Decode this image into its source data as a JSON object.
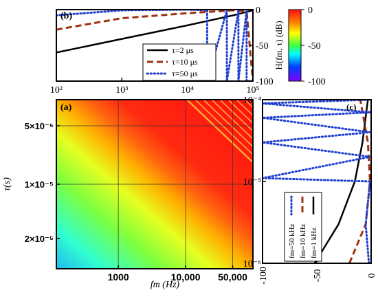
{
  "chart_data": [
    {
      "panel": "b",
      "panel_label": "(b)",
      "type": "line",
      "x_scale": "log",
      "xlim": [
        100,
        100000
      ],
      "ylim": [
        -100,
        0
      ],
      "x_ticks": [
        100,
        1000,
        10000,
        100000
      ],
      "x_tick_labels": [
        "10²",
        "10³",
        "10⁴",
        "10⁵"
      ],
      "y_ticks": [
        0,
        -50,
        -100
      ],
      "y_tick_labels": [
        "0",
        "-50",
        "-100"
      ],
      "y_axis_side": "right",
      "legend": "bottom-right",
      "series": [
        {
          "name": "τ=2 μs",
          "style": "solid",
          "color": "#000000",
          "x": [
            100,
            1000,
            10000,
            50000,
            100000
          ],
          "y": [
            -60,
            -41,
            -22,
            -8,
            -1
          ]
        },
        {
          "name": "τ=10 μs",
          "style": "dashed",
          "color": "#a0300f",
          "x": [
            100,
            1000,
            10000,
            50000,
            80000,
            100000
          ],
          "y": [
            -28,
            -12,
            -5,
            -1,
            -2,
            -100
          ]
        },
        {
          "name": "τ=50 μs",
          "style": "dotted",
          "color": "#1f3fd0",
          "x": [
            100,
            1000,
            10000,
            20000,
            20001,
            40000,
            40001,
            60000,
            60001,
            80000,
            80001,
            100000
          ],
          "y": [
            -8,
            -1,
            0,
            -1,
            -100,
            -1,
            -100,
            -1,
            -100,
            -1,
            -100,
            -100
          ]
        }
      ]
    },
    {
      "panel": "a",
      "panel_label": "(a)",
      "type": "heatmap",
      "x_scale": "log",
      "y_scale": "reciprocal",
      "xlim": [
        120,
        100000
      ],
      "ylim": [
        1e-06,
        0.0001
      ],
      "x_ticks": [
        1000,
        10000,
        50000
      ],
      "x_tick_labels": [
        "1000",
        "10,000",
        "50,000"
      ],
      "y_ticks": [
        5e-05,
        1e-05,
        2e-05
      ],
      "y_tick_labels": [
        "5×10⁻⁵",
        "1×10⁻⁵",
        "2×10⁻⁵"
      ],
      "xlabel": "fm (Hz)",
      "ylabel": "τ(s)",
      "gridlines_x": [
        1000,
        10000,
        50000
      ],
      "gridlines_y": [
        5e-05,
        1e-05
      ],
      "colorbar": {
        "label": "H(fm, τ) (dB)",
        "range": [
          -100,
          0
        ],
        "ticks": [
          0,
          -50,
          -100
        ],
        "tick_labels": [
          "0",
          "-50",
          "-100"
        ],
        "colors": [
          "#ff1010",
          "#ff8000",
          "#ffff00",
          "#40ff40",
          "#00ffff",
          "#0040ff",
          "#8000ff"
        ]
      }
    },
    {
      "panel": "c",
      "panel_label": "(c)",
      "type": "line",
      "y_scale": "log",
      "xlim": [
        -100,
        0
      ],
      "ylim": [
        1e-06,
        0.0001
      ],
      "x_ticks": [
        -100,
        -50,
        0
      ],
      "x_tick_labels": [
        "-100",
        "-50",
        "0"
      ],
      "y_ticks": [
        0.0001,
        1e-05,
        1e-06
      ],
      "y_tick_labels": [
        "10⁻⁴",
        "10⁻⁵",
        "10⁻⁶"
      ],
      "y_axis_side": "left",
      "legend": "bottom-left",
      "series": [
        {
          "name": "fm=1 kHz",
          "style": "solid",
          "color": "#000000",
          "x": [
            -52,
            -30,
            -15,
            -8,
            -3
          ],
          "y": [
            1e-06,
            3e-06,
            1e-05,
            3e-05,
            0.0001
          ]
        },
        {
          "name": "fm=10 kHz",
          "style": "dashed",
          "color": "#a0300f",
          "x": [
            -20,
            -5,
            -1,
            -3,
            -10
          ],
          "y": [
            1e-06,
            3e-06,
            1e-05,
            3e-05,
            0.0001
          ]
        },
        {
          "name": "fm=50 kHz",
          "style": "dotted",
          "color": "#1f3fd0",
          "x": [
            -2,
            -5,
            -1,
            -100,
            -1,
            -100,
            -1,
            -100,
            -1,
            -100,
            -1
          ],
          "y": [
            1e-06,
            3e-06,
            1e-05,
            1.1e-05,
            2e-05,
            3e-05,
            4e-05,
            6e-05,
            7e-05,
            9e-05,
            0.0001
          ]
        }
      ]
    }
  ]
}
